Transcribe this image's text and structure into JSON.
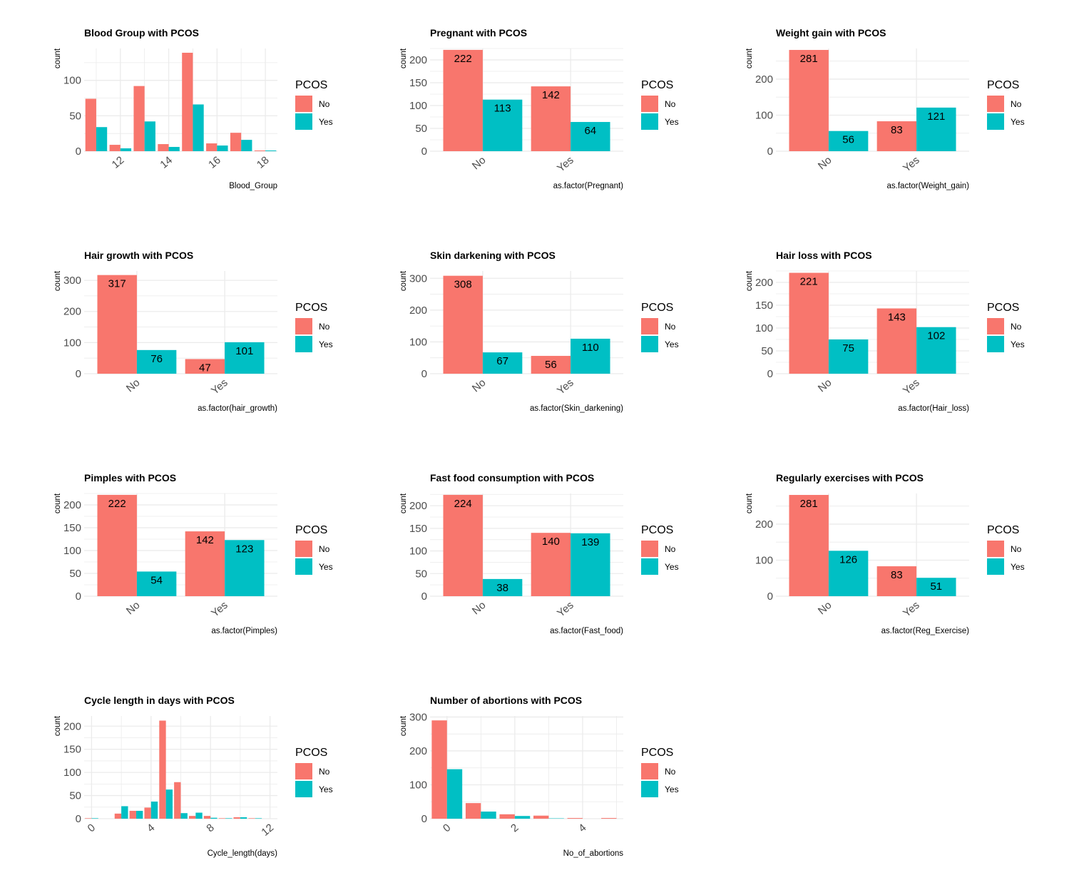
{
  "legend": {
    "title": "PCOS",
    "items": [
      "No",
      "Yes"
    ]
  },
  "colors": {
    "No": "#F8766D",
    "Yes": "#00BFC4",
    "grid": "#ebebeb"
  },
  "chart_data": [
    {
      "type": "bar",
      "title": "Blood Group with PCOS",
      "xlabel": "Blood_Group",
      "ylabel": "count",
      "xlim": [
        10.5,
        18.5
      ],
      "ylim": [
        0,
        145
      ],
      "xticks": [
        12,
        14,
        16,
        18
      ],
      "yticks": [
        0,
        50,
        100
      ],
      "label_bars": false,
      "bin_width": 1,
      "categories": [
        11,
        12,
        13,
        14,
        15,
        16,
        17,
        18
      ],
      "series": [
        {
          "name": "No",
          "values": [
            74,
            9,
            92,
            10,
            139,
            11,
            26,
            1
          ]
        },
        {
          "name": "Yes",
          "values": [
            34,
            4,
            42,
            6,
            66,
            8,
            16,
            1
          ]
        }
      ]
    },
    {
      "type": "bar",
      "title": "Pregnant with PCOS",
      "xlabel": "as.factor(Pregnant)",
      "ylabel": "count",
      "ylim": [
        0,
        225
      ],
      "yticks": [
        0,
        50,
        100,
        150,
        200
      ],
      "label_bars": true,
      "categories": [
        "No",
        "Yes"
      ],
      "series": [
        {
          "name": "No",
          "values": [
            222,
            142
          ]
        },
        {
          "name": "Yes",
          "values": [
            113,
            64
          ]
        }
      ]
    },
    {
      "type": "bar",
      "title": "Weight gain with PCOS",
      "xlabel": "as.factor(Weight_gain)",
      "ylabel": "count",
      "ylim": [
        0,
        285
      ],
      "yticks": [
        0,
        100,
        200
      ],
      "label_bars": true,
      "categories": [
        "No",
        "Yes"
      ],
      "series": [
        {
          "name": "No",
          "values": [
            281,
            83
          ]
        },
        {
          "name": "Yes",
          "values": [
            56,
            121
          ]
        }
      ]
    },
    {
      "type": "bar",
      "title": "Hair growth with PCOS",
      "xlabel": "as.factor(hair_growth)",
      "ylabel": "count",
      "ylim": [
        0,
        330
      ],
      "yticks": [
        0,
        100,
        200,
        300
      ],
      "label_bars": true,
      "categories": [
        "No",
        "Yes"
      ],
      "series": [
        {
          "name": "No",
          "values": [
            317,
            47
          ]
        },
        {
          "name": "Yes",
          "values": [
            76,
            101
          ]
        }
      ]
    },
    {
      "type": "bar",
      "title": "Skin darkening with PCOS",
      "xlabel": "as.factor(Skin_darkening)",
      "ylabel": "count",
      "ylim": [
        0,
        323
      ],
      "yticks": [
        0,
        100,
        200,
        300
      ],
      "label_bars": true,
      "categories": [
        "No",
        "Yes"
      ],
      "series": [
        {
          "name": "No",
          "values": [
            308,
            56
          ]
        },
        {
          "name": "Yes",
          "values": [
            67,
            110
          ]
        }
      ]
    },
    {
      "type": "bar",
      "title": "Hair loss with PCOS",
      "xlabel": "as.factor(Hair_loss)",
      "ylabel": "count",
      "ylim": [
        0,
        225
      ],
      "yticks": [
        0,
        50,
        100,
        150,
        200
      ],
      "label_bars": true,
      "categories": [
        "No",
        "Yes"
      ],
      "series": [
        {
          "name": "No",
          "values": [
            221,
            143
          ]
        },
        {
          "name": "Yes",
          "values": [
            75,
            102
          ]
        }
      ]
    },
    {
      "type": "bar",
      "title": "Pimples with PCOS",
      "xlabel": "as.factor(Pimples)",
      "ylabel": "count",
      "ylim": [
        0,
        225
      ],
      "yticks": [
        0,
        50,
        100,
        150,
        200
      ],
      "label_bars": true,
      "categories": [
        "No",
        "Yes"
      ],
      "series": [
        {
          "name": "No",
          "values": [
            222,
            142
          ]
        },
        {
          "name": "Yes",
          "values": [
            54,
            123
          ]
        }
      ]
    },
    {
      "type": "bar",
      "title": "Fast food consumption with PCOS",
      "xlabel": "as.factor(Fast_food)",
      "ylabel": "count",
      "ylim": [
        0,
        227
      ],
      "yticks": [
        0,
        50,
        100,
        150,
        200
      ],
      "label_bars": true,
      "categories": [
        "No",
        "Yes"
      ],
      "series": [
        {
          "name": "No",
          "values": [
            224,
            140
          ]
        },
        {
          "name": "Yes",
          "values": [
            38,
            139
          ]
        }
      ]
    },
    {
      "type": "bar",
      "title": "Regularly exercises with PCOS",
      "xlabel": "as.factor(Reg_Exercise)",
      "ylabel": "count",
      "ylim": [
        0,
        285
      ],
      "yticks": [
        0,
        100,
        200
      ],
      "label_bars": true,
      "categories": [
        "No",
        "Yes"
      ],
      "series": [
        {
          "name": "No",
          "values": [
            281,
            83
          ]
        },
        {
          "name": "Yes",
          "values": [
            126,
            51
          ]
        }
      ]
    },
    {
      "type": "bar",
      "title": "Cycle length in days with PCOS",
      "xlabel": "Cycle_length(days)",
      "ylabel": "count",
      "xlim": [
        -0.5,
        12.5
      ],
      "ylim": [
        0,
        222
      ],
      "xticks": [
        0,
        4,
        8,
        12
      ],
      "yticks": [
        0,
        50,
        100,
        150,
        200
      ],
      "label_bars": false,
      "bin_width": 1,
      "categories": [
        0,
        2,
        3,
        4,
        5,
        6,
        7,
        8,
        9,
        10,
        11,
        12
      ],
      "series": [
        {
          "name": "No",
          "values": [
            1,
            11,
            17,
            24,
            212,
            79,
            6,
            6,
            1,
            3,
            1,
            0
          ]
        },
        {
          "name": "Yes",
          "values": [
            1,
            27,
            17,
            37,
            63,
            12,
            13,
            2,
            1,
            3,
            1,
            0
          ]
        }
      ]
    },
    {
      "type": "bar",
      "title": "Number of abortions with PCOS",
      "xlabel": "No_of_abortions",
      "ylabel": "count",
      "xlim": [
        -0.5,
        5.2
      ],
      "ylim": [
        0,
        303
      ],
      "xticks": [
        0,
        2,
        4
      ],
      "yticks": [
        0,
        100,
        200,
        300
      ],
      "label_bars": false,
      "bin_width": 1,
      "categories": [
        0,
        1,
        2,
        3,
        4,
        5
      ],
      "series": [
        {
          "name": "No",
          "values": [
            290,
            46,
            13,
            9,
            2,
            2
          ]
        },
        {
          "name": "Yes",
          "values": [
            146,
            21,
            8,
            1,
            0,
            0
          ]
        }
      ]
    }
  ]
}
